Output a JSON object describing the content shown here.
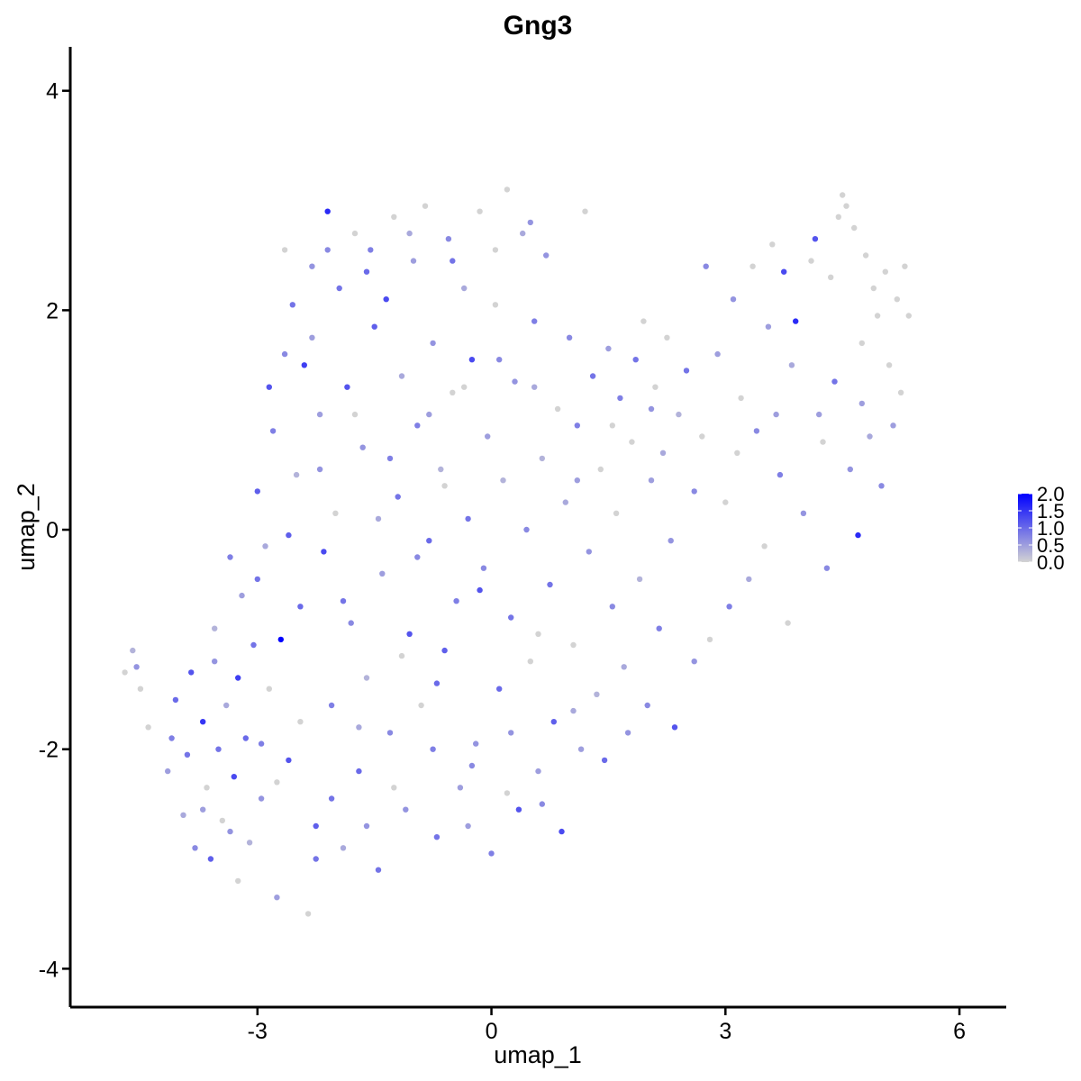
{
  "chart_data": {
    "type": "scatter",
    "title": "Gng3",
    "xlabel": "umap_1",
    "ylabel": "umap_2",
    "xlim": [
      -5.4,
      6.6
    ],
    "ylim": [
      -4.35,
      4.4
    ],
    "x_ticks": [
      -3,
      0,
      3,
      6
    ],
    "x_tick_labels": [
      "-3",
      "0",
      "3",
      "6"
    ],
    "y_ticks": [
      -4,
      -2,
      0,
      2,
      4
    ],
    "y_tick_labels": [
      "-4",
      "-2",
      "0",
      "2",
      "4"
    ],
    "grid": false,
    "legend_position": "right",
    "color_scale": {
      "low": "#d3d3d3",
      "high": "#0000ff",
      "min": 0,
      "max": 2.0,
      "ticks": [
        0.0,
        0.5,
        1.0,
        1.5,
        2.0
      ],
      "tick_labels": [
        "0.0",
        "0.5",
        "1.0",
        "1.5",
        "2.0"
      ]
    },
    "points": [
      [
        -4.7,
        -1.3,
        0
      ],
      [
        -4.6,
        -1.1,
        0.3
      ],
      [
        -4.55,
        -1.25,
        0.6
      ],
      [
        -4.5,
        -1.45,
        0
      ],
      [
        -4.4,
        -1.8,
        0
      ],
      [
        -4.15,
        -2.2,
        0.5
      ],
      [
        -4.1,
        -1.9,
        0.8
      ],
      [
        -4.05,
        -1.55,
        1.0
      ],
      [
        -3.95,
        -2.6,
        0.4
      ],
      [
        -3.9,
        -2.05,
        0.9
      ],
      [
        -3.85,
        -1.3,
        1.2
      ],
      [
        -3.8,
        -2.9,
        0.7
      ],
      [
        -3.7,
        -1.75,
        1.5
      ],
      [
        -3.65,
        -2.35,
        0
      ],
      [
        -3.6,
        -3.0,
        1.1
      ],
      [
        -3.55,
        -1.2,
        0.6
      ],
      [
        -3.5,
        -2.0,
        0.9
      ],
      [
        -3.45,
        -2.65,
        0
      ],
      [
        -3.4,
        -1.6,
        0.4
      ],
      [
        -3.35,
        -0.25,
        0.8
      ],
      [
        -3.3,
        -2.25,
        1.3
      ],
      [
        -3.25,
        -3.2,
        0
      ],
      [
        -3.2,
        -0.6,
        0.5
      ],
      [
        -3.15,
        -1.9,
        1.0
      ],
      [
        -3.1,
        -2.85,
        0.3
      ],
      [
        -3.05,
        -1.05,
        0.9
      ],
      [
        -3.0,
        0.35,
        1.1
      ],
      [
        -2.95,
        -2.45,
        0.6
      ],
      [
        -2.9,
        -0.15,
        0.4
      ],
      [
        -2.85,
        -1.45,
        0
      ],
      [
        -2.8,
        0.9,
        0.8
      ],
      [
        -2.75,
        -3.35,
        0.5
      ],
      [
        -2.7,
        -1.0,
        2.0
      ],
      [
        -2.65,
        1.6,
        0.7
      ],
      [
        -2.6,
        -2.1,
        1.2
      ],
      [
        -2.55,
        2.05,
        0.9
      ],
      [
        -2.5,
        0.5,
        0.3
      ],
      [
        -2.45,
        -0.7,
        1.0
      ],
      [
        -2.4,
        1.5,
        1.4
      ],
      [
        -2.35,
        -3.5,
        0
      ],
      [
        -2.3,
        2.4,
        0.6
      ],
      [
        -2.25,
        -2.7,
        1.1
      ],
      [
        -2.2,
        1.05,
        0.5
      ],
      [
        -2.15,
        -0.2,
        1.3
      ],
      [
        -2.1,
        2.9,
        1.6
      ],
      [
        -2.05,
        -1.6,
        0.8
      ],
      [
        -2.0,
        0.15,
        0
      ],
      [
        -1.95,
        2.2,
        0.9
      ],
      [
        -1.9,
        -2.9,
        0.4
      ],
      [
        -1.85,
        1.3,
        1.2
      ],
      [
        -1.8,
        -0.85,
        0.7
      ],
      [
        -1.75,
        2.7,
        0
      ],
      [
        -1.7,
        -2.2,
        1.0
      ],
      [
        -1.65,
        0.75,
        0.6
      ],
      [
        -1.6,
        -1.35,
        0.3
      ],
      [
        -1.55,
        2.55,
        0.8
      ],
      [
        -1.5,
        1.85,
        1.1
      ],
      [
        -1.45,
        -3.1,
        0.9
      ],
      [
        -1.4,
        -0.4,
        0.5
      ],
      [
        -1.35,
        2.1,
        1.3
      ],
      [
        -1.3,
        -1.85,
        0.7
      ],
      [
        -1.25,
        2.85,
        0
      ],
      [
        -1.2,
        0.3,
        0.9
      ],
      [
        -1.15,
        1.4,
        0.4
      ],
      [
        -1.1,
        -2.55,
        0.6
      ],
      [
        -1.05,
        -0.95,
        1.2
      ],
      [
        -1.0,
        2.45,
        0.5
      ],
      [
        -0.95,
        0.95,
        0.8
      ],
      [
        -0.9,
        -1.6,
        0
      ],
      [
        -0.85,
        2.95,
        0
      ],
      [
        -0.8,
        -0.1,
        1.0
      ],
      [
        -0.75,
        1.7,
        0.6
      ],
      [
        -0.7,
        -2.8,
        0.9
      ],
      [
        -0.65,
        0.55,
        0.3
      ],
      [
        -0.6,
        -1.1,
        1.1
      ],
      [
        -0.55,
        2.65,
        0.7
      ],
      [
        -0.5,
        1.25,
        0
      ],
      [
        -0.45,
        -0.65,
        0.8
      ],
      [
        -0.4,
        -2.35,
        0.5
      ],
      [
        -0.35,
        2.2,
        0.4
      ],
      [
        -0.3,
        0.1,
        0.9
      ],
      [
        -0.25,
        1.55,
        1.3
      ],
      [
        -0.2,
        -1.95,
        0.6
      ],
      [
        -0.15,
        2.9,
        0
      ],
      [
        -0.1,
        -0.35,
        0.7
      ],
      [
        -0.05,
        0.85,
        0.5
      ],
      [
        0.0,
        -2.95,
        0.8
      ],
      [
        0.05,
        2.05,
        0
      ],
      [
        0.1,
        -1.45,
        1.0
      ],
      [
        0.15,
        0.45,
        0.3
      ],
      [
        0.2,
        3.1,
        0
      ],
      [
        0.25,
        -0.8,
        0.9
      ],
      [
        0.3,
        1.35,
        0.6
      ],
      [
        0.35,
        -2.55,
        1.2
      ],
      [
        0.4,
        2.7,
        0.4
      ],
      [
        0.45,
        0.0,
        0.7
      ],
      [
        0.5,
        -1.2,
        0
      ],
      [
        0.55,
        1.9,
        0.8
      ],
      [
        0.6,
        -2.2,
        0.5
      ],
      [
        0.65,
        0.65,
        0.3
      ],
      [
        0.7,
        2.5,
        0.6
      ],
      [
        0.75,
        -0.5,
        0.9
      ],
      [
        0.8,
        -1.75,
        1.1
      ],
      [
        0.85,
        1.1,
        0
      ],
      [
        0.9,
        -2.75,
        1.3
      ],
      [
        0.95,
        0.25,
        0.4
      ],
      [
        1.0,
        1.75,
        0.7
      ],
      [
        1.05,
        -1.05,
        0
      ],
      [
        1.1,
        0.95,
        0.8
      ],
      [
        1.15,
        -2.0,
        0.5
      ],
      [
        1.2,
        2.9,
        0
      ],
      [
        1.25,
        -0.2,
        0.6
      ],
      [
        1.3,
        1.4,
        0.9
      ],
      [
        1.35,
        -1.5,
        0.3
      ],
      [
        1.4,
        0.55,
        0
      ],
      [
        1.45,
        -2.1,
        1.0
      ],
      [
        1.5,
        1.65,
        0.5
      ],
      [
        1.55,
        -0.7,
        0.7
      ],
      [
        1.6,
        0.15,
        0
      ],
      [
        1.65,
        1.2,
        0.8
      ],
      [
        1.7,
        -1.25,
        0.4
      ],
      [
        1.75,
        -1.85,
        0.6
      ],
      [
        1.8,
        0.8,
        0
      ],
      [
        1.85,
        1.55,
        0.9
      ],
      [
        1.9,
        -0.45,
        0.3
      ],
      [
        1.95,
        1.9,
        0
      ],
      [
        2.0,
        -1.6,
        0.7
      ],
      [
        2.05,
        0.45,
        0.5
      ],
      [
        2.1,
        1.3,
        0
      ],
      [
        2.15,
        -0.9,
        0.8
      ],
      [
        2.2,
        0.7,
        0.4
      ],
      [
        2.25,
        1.75,
        0
      ],
      [
        2.3,
        -0.1,
        0.6
      ],
      [
        2.35,
        -1.8,
        1.2
      ],
      [
        2.4,
        1.05,
        0.3
      ],
      [
        2.5,
        1.45,
        0.9
      ],
      [
        2.6,
        -1.2,
        0.6
      ],
      [
        2.7,
        0.85,
        0
      ],
      [
        2.75,
        2.4,
        0.7
      ],
      [
        2.8,
        -1.0,
        0
      ],
      [
        2.9,
        1.6,
        0.5
      ],
      [
        3.0,
        0.25,
        0
      ],
      [
        3.05,
        -0.7,
        0.8
      ],
      [
        3.1,
        2.1,
        0.6
      ],
      [
        3.2,
        1.2,
        0
      ],
      [
        3.3,
        -0.45,
        0.4
      ],
      [
        3.35,
        2.4,
        0
      ],
      [
        3.4,
        0.9,
        0.7
      ],
      [
        3.5,
        -0.15,
        0
      ],
      [
        3.55,
        1.85,
        0.5
      ],
      [
        3.6,
        2.6,
        0
      ],
      [
        3.7,
        0.5,
        0.8
      ],
      [
        3.75,
        2.35,
        1.3
      ],
      [
        3.8,
        -0.85,
        0
      ],
      [
        3.85,
        1.5,
        0.4
      ],
      [
        3.9,
        1.9,
        1.6
      ],
      [
        4.0,
        0.15,
        0.6
      ],
      [
        4.1,
        2.45,
        0
      ],
      [
        4.15,
        2.65,
        1.2
      ],
      [
        4.2,
        1.05,
        0.5
      ],
      [
        4.3,
        -0.35,
        0.7
      ],
      [
        4.35,
        2.3,
        0
      ],
      [
        4.4,
        1.35,
        0.9
      ],
      [
        4.45,
        2.85,
        0
      ],
      [
        4.5,
        3.05,
        0
      ],
      [
        4.55,
        2.95,
        0
      ],
      [
        4.6,
        0.55,
        0.6
      ],
      [
        4.65,
        2.75,
        0
      ],
      [
        4.7,
        -0.05,
        1.6
      ],
      [
        4.75,
        1.7,
        0
      ],
      [
        4.8,
        2.5,
        0
      ],
      [
        4.85,
        0.85,
        0.4
      ],
      [
        4.9,
        2.2,
        0
      ],
      [
        4.95,
        1.95,
        0
      ],
      [
        5.0,
        0.4,
        0.7
      ],
      [
        5.05,
        2.35,
        0
      ],
      [
        5.1,
        1.5,
        0
      ],
      [
        5.15,
        0.95,
        0.5
      ],
      [
        5.2,
        2.1,
        0
      ],
      [
        5.25,
        1.25,
        0
      ],
      [
        5.3,
        2.4,
        0
      ],
      [
        5.35,
        1.95,
        0
      ],
      [
        -2.95,
        -1.95,
        0.8
      ],
      [
        -2.6,
        -0.05,
        1.1
      ],
      [
        -2.2,
        0.55,
        0.6
      ],
      [
        -1.9,
        -0.65,
        0.9
      ],
      [
        -1.45,
        0.1,
        0.4
      ],
      [
        -0.95,
        -0.25,
        0.7
      ],
      [
        -0.6,
        0.4,
        0
      ],
      [
        -0.15,
        -0.55,
        1.2
      ],
      [
        0.25,
        -1.85,
        0.6
      ],
      [
        0.6,
        -0.95,
        0
      ],
      [
        -3.7,
        -2.55,
        0.5
      ],
      [
        -3.25,
        -1.35,
        1.4
      ],
      [
        -2.45,
        -1.75,
        0
      ],
      [
        -2.05,
        -2.45,
        0.9
      ],
      [
        -1.6,
        -2.7,
        0.6
      ],
      [
        -1.15,
        -1.15,
        0
      ],
      [
        -0.7,
        -1.4,
        1.0
      ],
      [
        -0.25,
        -2.15,
        0.7
      ],
      [
        -3.55,
        -0.9,
        0.3
      ],
      [
        -3.0,
        -0.45,
        0.9
      ],
      [
        -2.85,
        1.3,
        1.2
      ],
      [
        -2.3,
        1.75,
        0.5
      ],
      [
        -1.75,
        1.05,
        0
      ],
      [
        -1.3,
        0.65,
        0.8
      ],
      [
        -0.8,
        1.05,
        0.5
      ],
      [
        -0.35,
        1.3,
        0
      ],
      [
        0.1,
        1.55,
        0.7
      ],
      [
        0.55,
        1.3,
        0.4
      ],
      [
        -2.65,
        2.55,
        0
      ],
      [
        -2.1,
        2.55,
        0.7
      ],
      [
        -1.6,
        2.35,
        1.0
      ],
      [
        -1.05,
        2.7,
        0.4
      ],
      [
        -0.5,
        2.45,
        0.9
      ],
      [
        0.05,
        2.55,
        0
      ],
      [
        0.5,
        2.8,
        0.6
      ],
      [
        1.1,
        0.45,
        0.5
      ],
      [
        1.55,
        0.95,
        0
      ],
      [
        2.05,
        1.1,
        0.6
      ],
      [
        2.6,
        0.35,
        0.7
      ],
      [
        3.15,
        0.7,
        0
      ],
      [
        3.65,
        1.05,
        0.5
      ],
      [
        4.25,
        0.8,
        0
      ],
      [
        4.75,
        1.15,
        0.5
      ],
      [
        -3.35,
        -2.75,
        0.6
      ],
      [
        -2.75,
        -2.3,
        0
      ],
      [
        -2.25,
        -3.0,
        0.9
      ],
      [
        -1.7,
        -1.8,
        0.4
      ],
      [
        -1.25,
        -2.35,
        0
      ],
      [
        -0.75,
        -2.0,
        0.8
      ],
      [
        -0.3,
        -2.7,
        0.5
      ],
      [
        0.2,
        -2.4,
        0
      ],
      [
        0.65,
        -2.5,
        0.7
      ],
      [
        1.05,
        -1.65,
        0.4
      ]
    ]
  }
}
